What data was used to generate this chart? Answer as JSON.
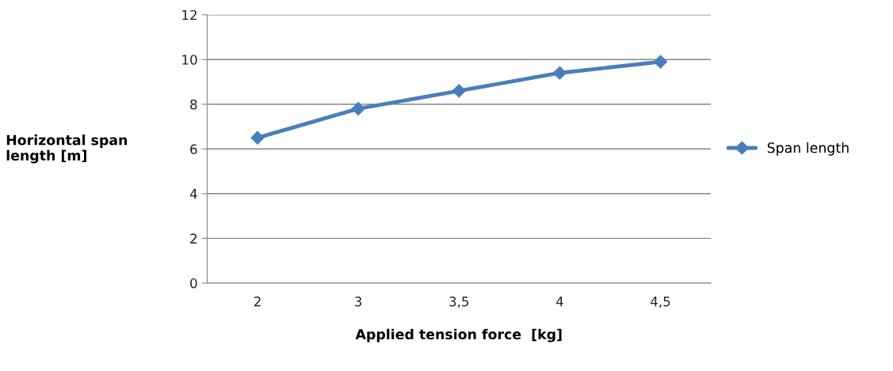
{
  "chart_data": {
    "type": "line",
    "xlabel": "Applied tension force  [kg]",
    "ylabel": "Horizontal span\nlength [m]",
    "categories": [
      "2",
      "3",
      "3,5",
      "4",
      "4,5"
    ],
    "series": [
      {
        "name": "Span length",
        "color": "#4a7ebb",
        "values": [
          6.5,
          7.8,
          8.6,
          9.4,
          9.9
        ]
      }
    ],
    "ylim": [
      0,
      12
    ],
    "yticks": [
      0,
      2,
      4,
      6,
      8,
      10,
      12
    ],
    "grid": "y",
    "legend": "right",
    "marker": "diamond",
    "line_style": "solid"
  }
}
